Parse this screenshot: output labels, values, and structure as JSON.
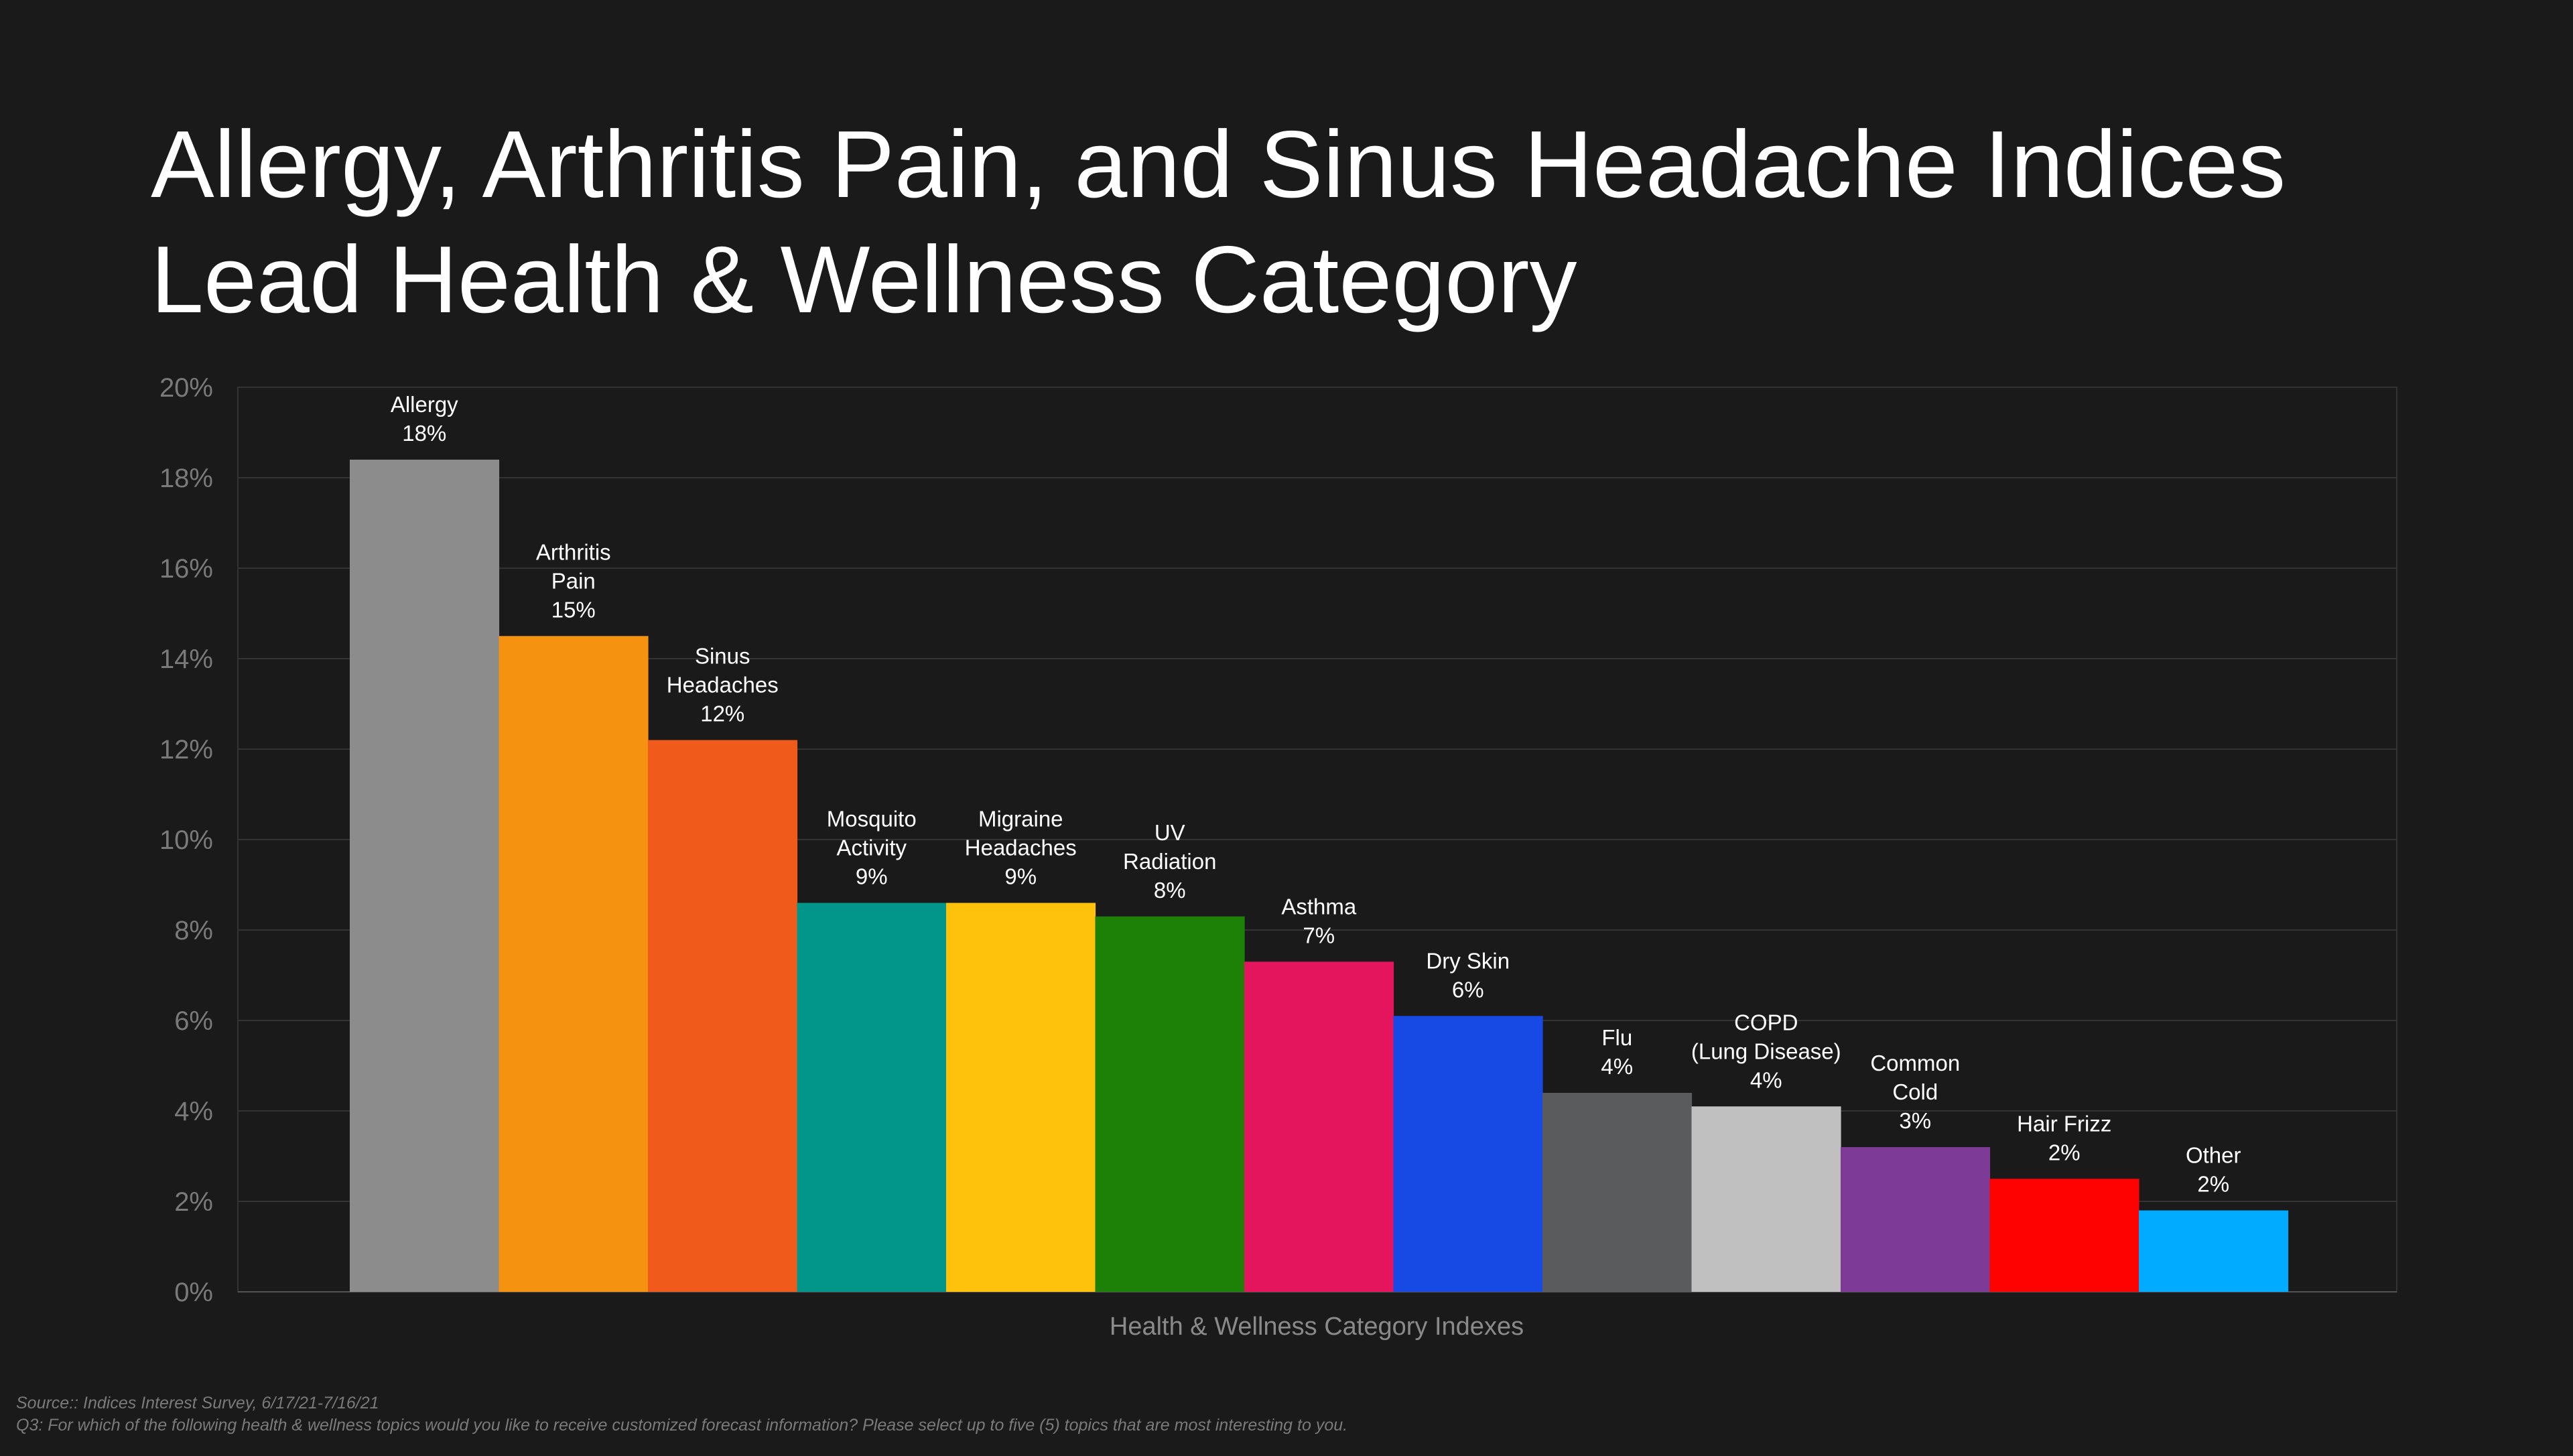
{
  "title_lines": [
    "Allergy, Arthritis Pain, and Sinus Headache Indices",
    "Lead Health & Wellness Category"
  ],
  "footnotes": {
    "source": "Source:: Indices Interest Survey, 6/17/21-7/16/21",
    "question": "Q3: For which of the following health & wellness topics would you like to receive customized forecast information? Please select up to five (5) topics that are most interesting to you."
  },
  "chart_data": {
    "type": "bar",
    "title": "Allergy, Arthritis Pain, and Sinus Headache Indices Lead Health & Wellness Category",
    "xlabel": "Health & Wellness Category Indexes",
    "ylabel": "",
    "ylim": [
      0,
      20
    ],
    "yticks": [
      "0%",
      "2%",
      "4%",
      "6%",
      "8%",
      "10%",
      "12%",
      "14%",
      "16%",
      "18%",
      "20%"
    ],
    "grid": true,
    "legend": "none",
    "categories": [
      [
        "Allergy"
      ],
      [
        "Arthritis",
        "Pain"
      ],
      [
        "Sinus",
        "Headaches"
      ],
      [
        "Mosquito",
        "Activity"
      ],
      [
        "Migraine",
        "Headaches"
      ],
      [
        "UV",
        "Radiation"
      ],
      [
        "Asthma"
      ],
      [
        "Dry Skin"
      ],
      [
        "Flu"
      ],
      [
        "COPD",
        "(Lung Disease)"
      ],
      [
        "Common",
        "Cold"
      ],
      [
        "Hair Frizz"
      ],
      [
        "Other"
      ]
    ],
    "values": [
      18.4,
      14.5,
      12.2,
      8.6,
      8.6,
      8.3,
      7.3,
      6.1,
      4.4,
      4.1,
      3.2,
      2.5,
      1.8
    ],
    "value_labels": [
      "18%",
      "15%",
      "12%",
      "9%",
      "9%",
      "8%",
      "7%",
      "6%",
      "4%",
      "4%",
      "3%",
      "2%",
      "2%"
    ],
    "colors": [
      "#8c8c8c",
      "#f5920f",
      "#f05a1a",
      "#02968a",
      "#fec10c",
      "#1e8107",
      "#e4155d",
      "#1749e5",
      "#5a5b5d",
      "#c0c0c0",
      "#7d3a97",
      "#fe0101",
      "#01abff"
    ]
  }
}
